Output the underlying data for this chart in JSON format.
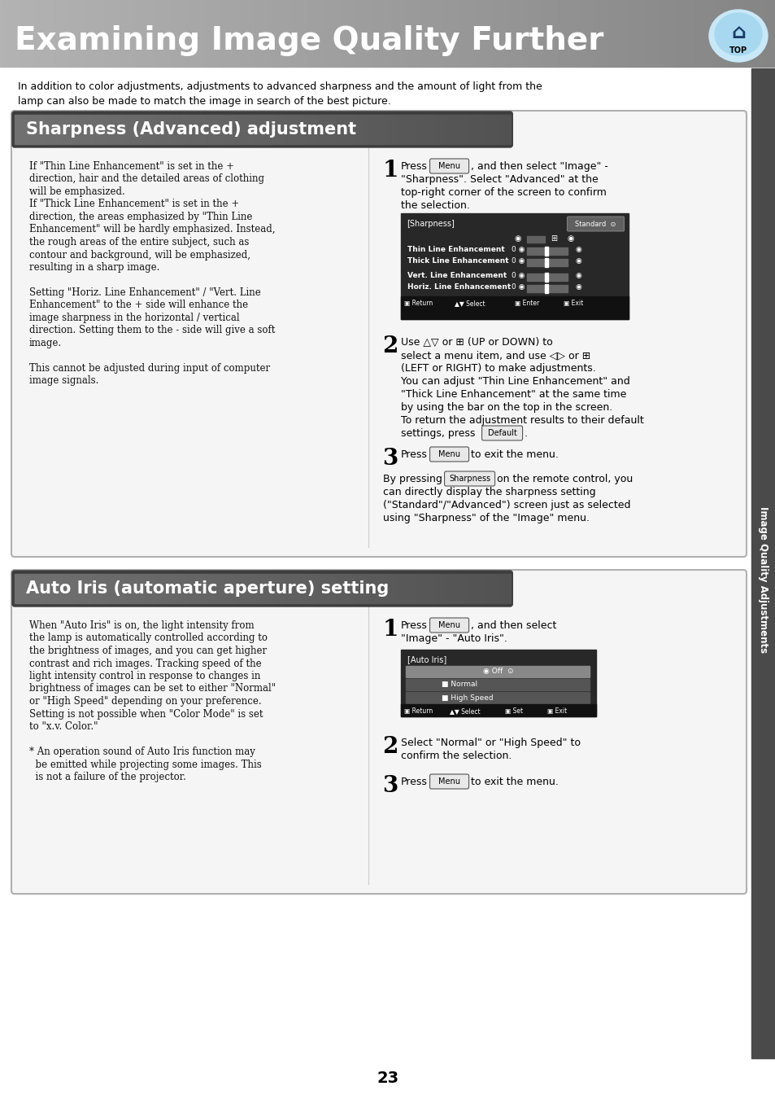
{
  "page_title": "Examining Image Quality Further",
  "header_text_color": "#ffffff",
  "page_bg": "#ffffff",
  "intro_text_line1": "In addition to color adjustments, adjustments to advanced sharpness and the amount of light from the",
  "intro_text_line2": "lamp can also be made to match the image in search of the best picture.",
  "section1_title": "Sharpness (Advanced) adjustment",
  "section1_left_lines": [
    "If \"Thin Line Enhancement\" is set in the +",
    "direction, hair and the detailed areas of clothing",
    "will be emphasized.",
    "If \"Thick Line Enhancement\" is set in the +",
    "direction, the areas emphasized by \"Thin Line",
    "Enhancement\" will be hardly emphasized. Instead,",
    "the rough areas of the entire subject, such as",
    "contour and background, will be emphasized,",
    "resulting in a sharp image.",
    "",
    "Setting \"Horiz. Line Enhancement\" / \"Vert. Line",
    "Enhancement\" to the + side will enhance the",
    "image sharpness in the horizontal / vertical",
    "direction. Setting them to the - side will give a soft",
    "image.",
    "",
    "This cannot be adjusted during input of computer",
    "image signals."
  ],
  "section2_title": "Auto Iris (automatic aperture) setting",
  "section2_left_lines": [
    "When \"Auto Iris\" is on, the light intensity from",
    "the lamp is automatically controlled according to",
    "the brightness of images, and you can get higher",
    "contrast and rich images. Tracking speed of the",
    "light intensity control in response to changes in",
    "brightness of images can be set to either \"Normal\"",
    "or \"High Speed\" depending on your preference.",
    "Setting is not possible when \"Color Mode\" is set",
    "to \"x.v. Color.\"",
    "",
    "* An operation sound of Auto Iris function may",
    "  be emitted while projecting some images. This",
    "  is not a failure of the projector."
  ],
  "sidebar_text": "Image Quality Adjustments",
  "page_number": "23"
}
